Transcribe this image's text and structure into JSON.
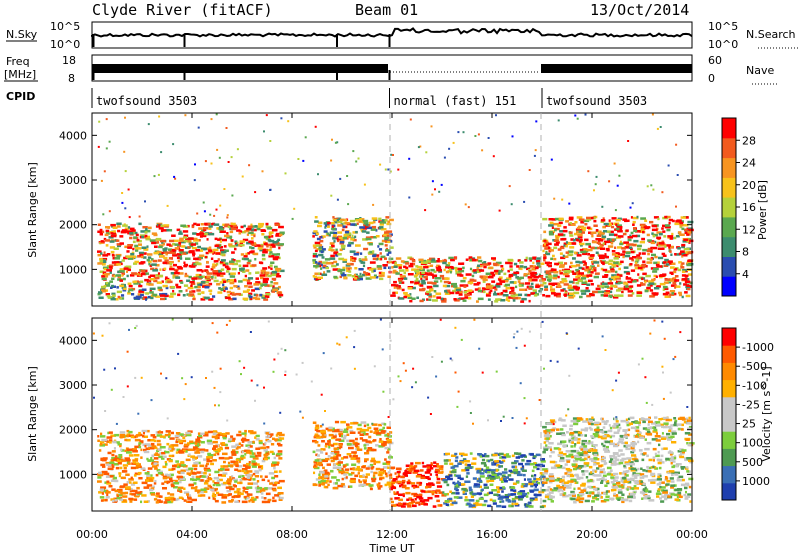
{
  "header": {
    "title": "Clyde River (fitACF)",
    "beam": "Beam 01",
    "date": "13/Oct/2014"
  },
  "noise_panel": {
    "left_label": "N.Sky",
    "left_top_tick": "10^5",
    "left_bottom_tick": "10^0",
    "right_label": "N.Search",
    "right_top_tick": "10^5",
    "right_bottom_tick": "10^0"
  },
  "freq_panel": {
    "left_label_line1": "Freq",
    "left_label_line2": "[MHz]",
    "left_top_tick": "18",
    "left_bottom_tick": "8",
    "right_label": "Nave",
    "right_top_tick": "60",
    "right_bottom_tick": "0"
  },
  "cpid": {
    "label": "CPID",
    "segments": [
      {
        "start_h": 0,
        "end_h": 11.9,
        "text": "twofsound 3503"
      },
      {
        "start_h": 11.9,
        "end_h": 18.0,
        "text": "normal (fast) 151"
      },
      {
        "start_h": 18.0,
        "end_h": 24,
        "text": "twofsound 3503"
      }
    ]
  },
  "x_axis": {
    "label": "Time UT",
    "ticks": [
      "00:00",
      "04:00",
      "08:00",
      "12:00",
      "16:00",
      "20:00",
      "00:00"
    ]
  },
  "colors": {
    "power": [
      "#0000ff",
      "#2a4db0",
      "#3c8c6e",
      "#5aa84f",
      "#b5d13a",
      "#f7c21b",
      "#f79420",
      "#f25a1e",
      "#ff0000"
    ],
    "velocity": [
      "#ff0000",
      "#ff5a00",
      "#ff8a00",
      "#ffb000",
      "#c8c8c8",
      "#c8c8c8",
      "#7ccd3c",
      "#4e9a52",
      "#3a6fb5",
      "#1f3fae"
    ]
  },
  "chart_data": [
    {
      "type": "heatmap",
      "title": "",
      "xlabel": "",
      "ylabel": "Slant Range [km]",
      "xlim": [
        0,
        24
      ],
      "ylim": [
        180,
        4500
      ],
      "yticks": [
        "1000",
        "2000",
        "3000",
        "4000"
      ],
      "colorbar": {
        "label": "Power [dB]",
        "ticks": [
          "4",
          "8",
          "12",
          "16",
          "20",
          "24",
          "28"
        ],
        "range": [
          0,
          30
        ]
      },
      "regions": [
        {
          "t0": 0.2,
          "t1": 7.5,
          "r0": 700,
          "r1": 2050,
          "level": "high"
        },
        {
          "t0": 0.2,
          "t1": 7.5,
          "r0": 350,
          "r1": 700,
          "level": "mixed"
        },
        {
          "t0": 8.8,
          "t1": 11.9,
          "r0": 800,
          "r1": 2200,
          "level": "mixed"
        },
        {
          "t0": 11.9,
          "t1": 18.0,
          "r0": 300,
          "r1": 1300,
          "level": "high"
        },
        {
          "t0": 18.0,
          "t1": 23.9,
          "r0": 400,
          "r1": 2200,
          "level": "high"
        }
      ]
    },
    {
      "type": "heatmap",
      "title": "",
      "xlabel": "Time UT",
      "ylabel": "Slant Range [km]",
      "xlim": [
        0,
        24
      ],
      "ylim": [
        180,
        4500
      ],
      "yticks": [
        "1000",
        "2000",
        "3000",
        "4000"
      ],
      "colorbar": {
        "label": "Velocity [m s^-1]",
        "ticks": [
          "1000",
          "500",
          "100",
          "25",
          "-25",
          "-100",
          "-500",
          "-1000"
        ]
      },
      "regions": [
        {
          "t0": 0.2,
          "t1": 7.5,
          "r0": 400,
          "r1": 2000,
          "level": "negative"
        },
        {
          "t0": 8.8,
          "t1": 11.9,
          "r0": 700,
          "r1": 2200,
          "level": "negative"
        },
        {
          "t0": 11.9,
          "t1": 14.0,
          "r0": 300,
          "r1": 1300,
          "level": "strong-negative"
        },
        {
          "t0": 14.0,
          "t1": 18.0,
          "r0": 300,
          "r1": 1500,
          "level": "positive"
        },
        {
          "t0": 18.0,
          "t1": 23.9,
          "r0": 400,
          "r1": 2300,
          "level": "near-zero"
        }
      ]
    }
  ]
}
